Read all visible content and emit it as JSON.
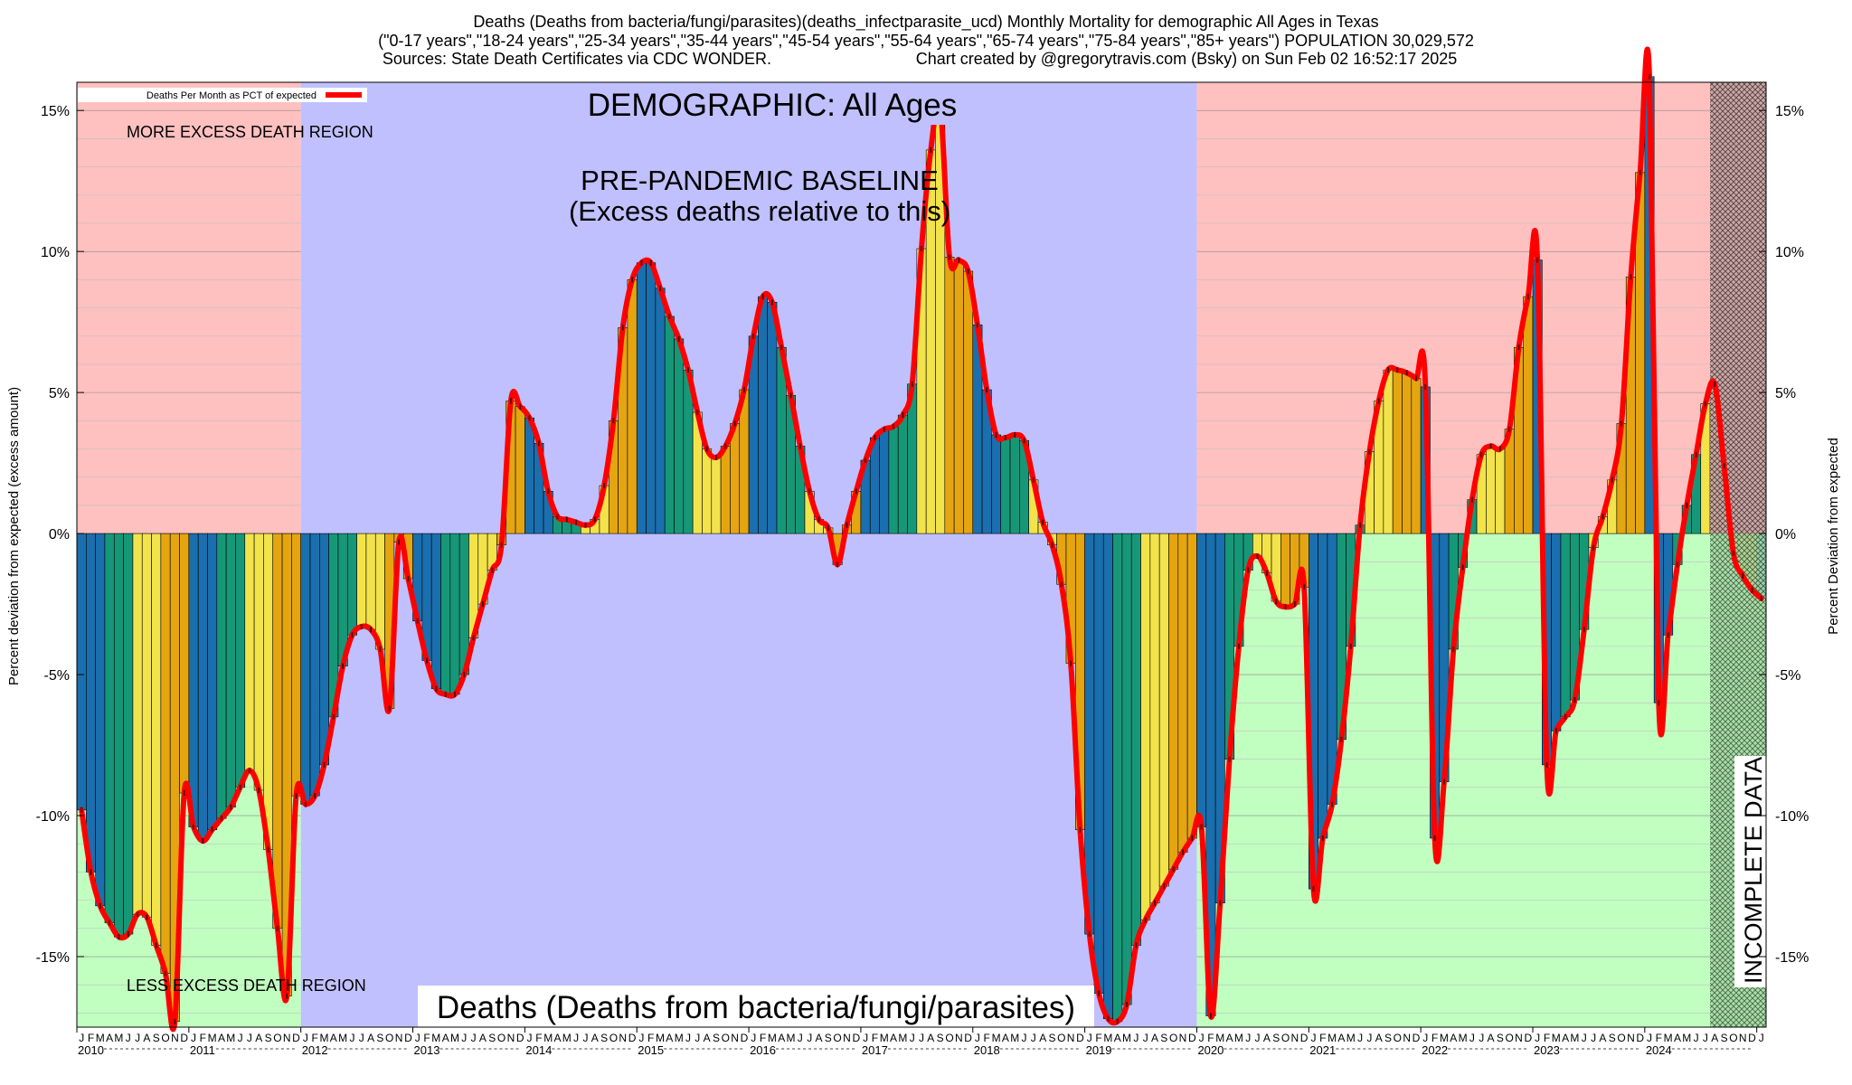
{
  "chart_data": {
    "type": "bar",
    "title_lines": [
      "Deaths (Deaths from bacteria/fungi/parasites)(deaths_infectparasite_ucd) Monthly Mortality for demographic All Ages in Texas",
      "(\"0-17 years\",\"18-24 years\",\"25-34 years\",\"35-44 years\",\"45-54 years\",\"55-64 years\",\"65-74 years\",\"75-84 years\",\"85+ years\") POPULATION 30,029,572",
      "Sources: State Death Certificates via CDC WONDER.",
      "Chart created by @gregorytravis.com (Bsky) on Sun Feb 02 16:52:17 2025"
    ],
    "ylabel_left": "Percent deviation from expected (excess amount)",
    "ylabel_right": "Percent Deviation from expected",
    "legend_label": "Deaths Per Month as PCT of expected",
    "ylim": [
      -17.5,
      16
    ],
    "yticks": [
      15,
      10,
      5,
      0,
      -5,
      -10,
      -15
    ],
    "ytick_labels": [
      "15%",
      "10%",
      "5%",
      "0%",
      "-5%",
      "-10%",
      "-15%"
    ],
    "annotations": {
      "demographic": "DEMOGRAPHIC: All Ages",
      "baseline_line1": "PRE-PANDEMIC BASELINE",
      "baseline_line2": "(Excess deaths relative to this)",
      "more_region": "MORE EXCESS DEATH REGION",
      "less_region": "LESS EXCESS DEATH REGION",
      "bottom_title": "Deaths (Deaths from bacteria/fungi/parasites)",
      "incomplete": "INCOMPLETE DATA"
    },
    "month_letters": [
      "J",
      "F",
      "M",
      "A",
      "M",
      "J",
      "J",
      "A",
      "S",
      "O",
      "N",
      "D"
    ],
    "years": [
      "2010",
      "2011",
      "2012",
      "2013",
      "2014",
      "2015",
      "2016",
      "2017",
      "2018",
      "2019",
      "2020",
      "2021",
      "2022",
      "2023",
      "2024"
    ],
    "baseline_period": [
      "2012-01",
      "2019-12"
    ],
    "incomplete_from": "2024-08",
    "colors": {
      "more_region": "#ffc0c0",
      "less_region": "#c0ffc0",
      "baseline": "#c0c0ff",
      "line": "#ff0000",
      "bars": [
        "#1a6fae",
        "#169878",
        "#f2e34b",
        "#e4a510"
      ]
    },
    "values": [
      -9.8,
      -12.0,
      -13.2,
      -13.8,
      -14.3,
      -14.2,
      -13.5,
      -13.6,
      -14.6,
      -15.6,
      -17.3,
      -9.2,
      -10.4,
      -10.9,
      -10.5,
      -10.1,
      -9.7,
      -9.0,
      -8.4,
      -9.1,
      -11.2,
      -14.0,
      -16.4,
      -9.3,
      -9.6,
      -9.3,
      -8.2,
      -6.5,
      -4.7,
      -3.6,
      -3.3,
      -3.4,
      -4.1,
      -6.2,
      -0.3,
      -1.6,
      -3.1,
      -4.5,
      -5.5,
      -5.7,
      -5.7,
      -5.0,
      -3.7,
      -2.5,
      -1.3,
      -0.4,
      4.7,
      4.5,
      4.1,
      3.2,
      1.5,
      0.6,
      0.5,
      0.4,
      0.3,
      0.5,
      1.7,
      4.0,
      7.3,
      9.0,
      9.6,
      9.6,
      8.7,
      7.7,
      6.9,
      5.8,
      4.3,
      3.0,
      2.7,
      3.1,
      3.9,
      5.1,
      7.0,
      8.4,
      8.2,
      6.6,
      4.9,
      3.1,
      1.5,
      0.5,
      0.2,
      -1.1,
      0.3,
      1.5,
      2.6,
      3.4,
      3.7,
      3.8,
      4.2,
      5.3,
      10.1,
      13.6,
      15.2,
      9.8,
      9.7,
      9.3,
      7.4,
      5.1,
      3.5,
      3.4,
      3.5,
      3.3,
      1.9,
      0.4,
      -0.4,
      -1.8,
      -4.6,
      -10.5,
      -14.2,
      -16.3,
      -17.2,
      -17.3,
      -16.7,
      -14.6,
      -13.7,
      -13.1,
      -12.5,
      -11.9,
      -11.3,
      -10.8,
      -10.4,
      -17.1,
      -13.1,
      -8.0,
      -4.0,
      -1.3,
      -0.8,
      -1.4,
      -2.4,
      -2.6,
      -2.5,
      -1.9,
      -12.6,
      -10.8,
      -9.6,
      -7.3,
      -4.0,
      0.3,
      2.9,
      4.7,
      5.8,
      5.8,
      5.7,
      5.5,
      5.2,
      -10.8,
      -8.8,
      -4.1,
      -1.2,
      1.2,
      2.8,
      3.1,
      3.0,
      3.7,
      6.6,
      8.4,
      9.7,
      -8.2,
      -7.0,
      -6.5,
      -5.9,
      -3.4,
      -0.5,
      0.6,
      1.9,
      3.9,
      9.1,
      12.8,
      16.2,
      -6.0,
      -3.6,
      -1.1,
      1.0,
      2.8,
      4.6,
      5.3,
      2.4,
      -0.7,
      -1.5,
      -2.0,
      -2.3
    ]
  }
}
